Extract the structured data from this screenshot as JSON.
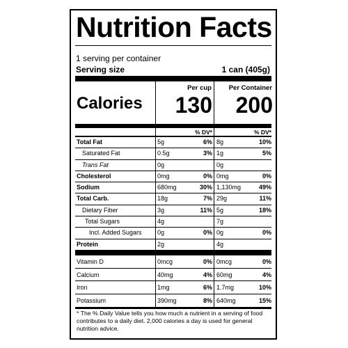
{
  "title": "Nutrition Facts",
  "servings_per_container": "1 serving per container",
  "serving_size_label": "Serving size",
  "serving_size_value": "1 can (405g)",
  "calories": {
    "label": "Calories",
    "col1_header": "Per cup",
    "col2_header": "Per Container",
    "col1_value": "130",
    "col2_value": "200"
  },
  "dv_header": "% DV*",
  "nutrients": [
    {
      "name": "Total Fat",
      "a1": "5g",
      "p1": "6%",
      "a2": "8g",
      "p2": "10%"
    },
    {
      "name": "Saturated Fat",
      "a1": "0.5g",
      "p1": "3%",
      "a2": "1g",
      "p2": "5%"
    },
    {
      "name": "Trans Fat",
      "a1": "0g",
      "p1": "",
      "a2": "0g",
      "p2": ""
    },
    {
      "name": "Cholesterol",
      "a1": "0mg",
      "p1": "0%",
      "a2": "0mg",
      "p2": "0%"
    },
    {
      "name": "Sodium",
      "a1": "680mg",
      "p1": "30%",
      "a2": "1,130mg",
      "p2": "49%"
    },
    {
      "name": "Total Carb.",
      "a1": "18g",
      "p1": "7%",
      "a2": "29g",
      "p2": "11%"
    },
    {
      "name": "Dietary Fiber",
      "a1": "3g",
      "p1": "11%",
      "a2": "5g",
      "p2": "18%"
    },
    {
      "name": "Total Sugars",
      "a1": "4g",
      "p1": "",
      "a2": "7g",
      "p2": ""
    },
    {
      "name": "Incl. Added Sugars",
      "a1": "0g",
      "p1": "0%",
      "a2": "0g",
      "p2": "0%"
    },
    {
      "name": "Protein",
      "a1": "2g",
      "p1": "",
      "a2": "4g",
      "p2": ""
    }
  ],
  "vitamins": [
    {
      "name": "Vitamin D",
      "a1": "0mcg",
      "p1": "0%",
      "a2": "0mcg",
      "p2": "0%"
    },
    {
      "name": "Calcium",
      "a1": "40mg",
      "p1": "4%",
      "a2": "60mg",
      "p2": "4%"
    },
    {
      "name": "Iron",
      "a1": "1mg",
      "p1": "6%",
      "a2": "1.7mg",
      "p2": "10%"
    },
    {
      "name": "Potassium",
      "a1": "390mg",
      "p1": "8%",
      "a2": "640mg",
      "p2": "15%"
    }
  ],
  "footnote": "* The % Daily Value tells you how much a nutrient in a serving of food contributes to a daily diet. 2,000 calories a day is used for general nutrition advice."
}
